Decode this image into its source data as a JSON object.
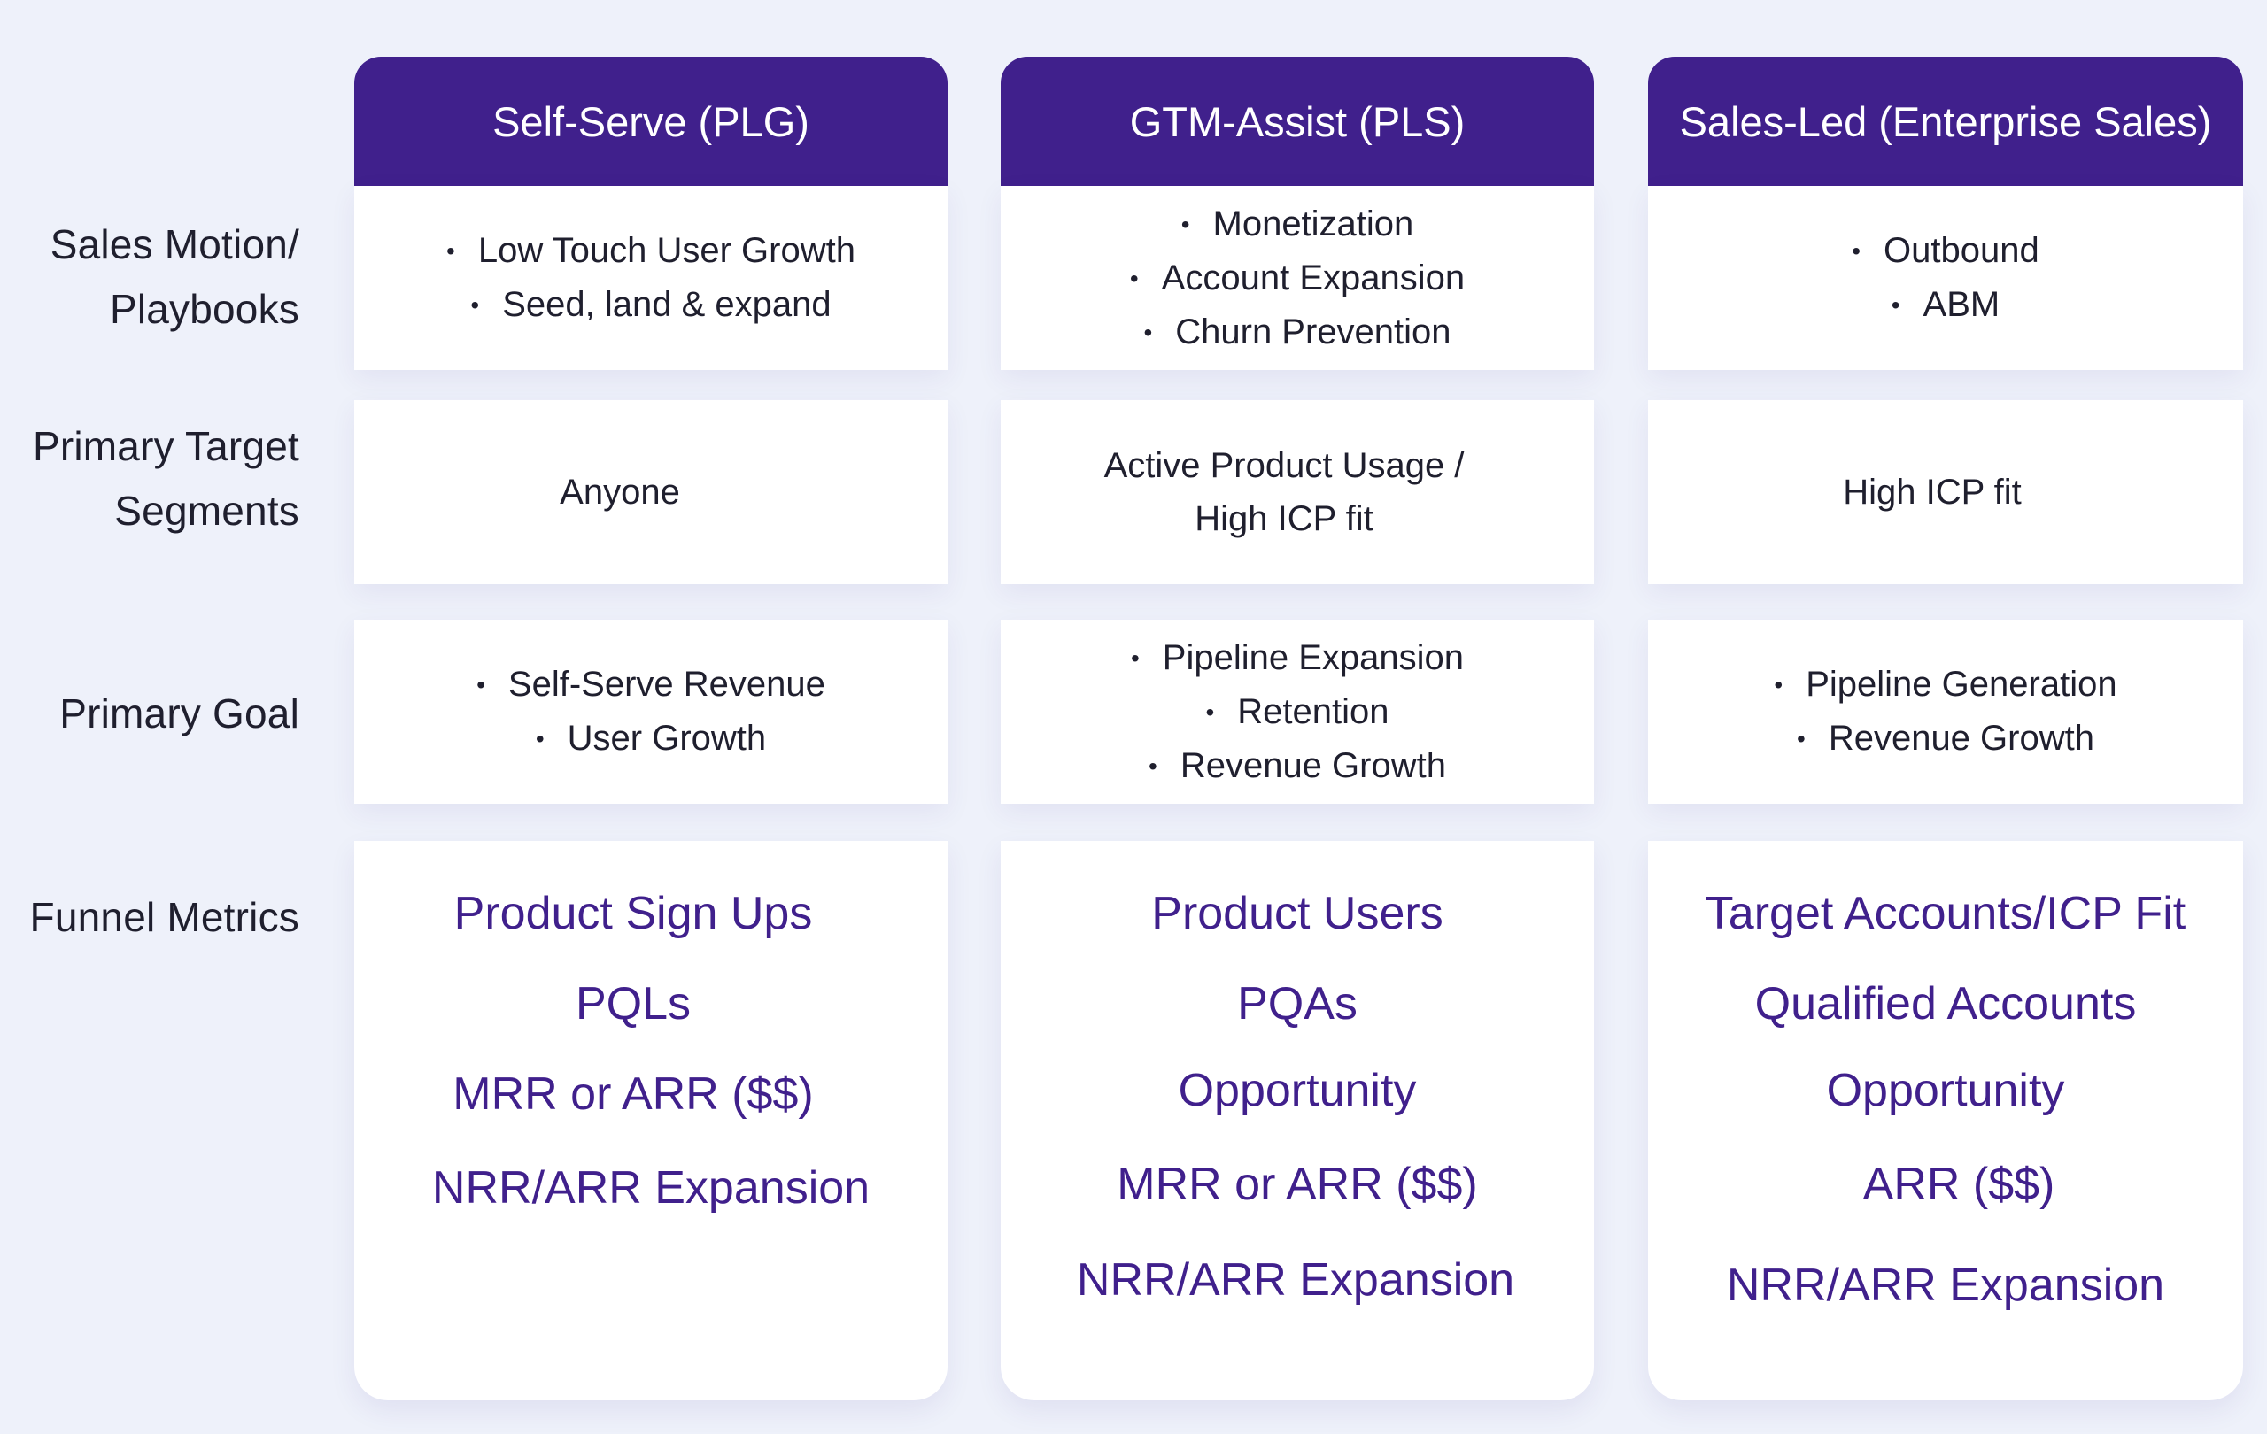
{
  "row_labels": {
    "sales_motion": [
      "Sales Motion/",
      "Playbooks"
    ],
    "target_segments": [
      "Primary Target",
      "Segments"
    ],
    "primary_goal": [
      "Primary Goal"
    ],
    "funnel_metrics": [
      "Funnel Metrics"
    ]
  },
  "columns": [
    {
      "header": "Self-Serve (PLG)",
      "sales_motion": [
        "Low Touch User Growth",
        "Seed, land & expand"
      ],
      "target_segments": [
        "Anyone"
      ],
      "primary_goal": [
        "Self-Serve Revenue",
        "User Growth"
      ],
      "funnel_metrics": [
        "Product Sign Ups",
        "PQLs",
        "MRR or ARR ($$)",
        "NRR/ARR Expansion"
      ]
    },
    {
      "header": "GTM-Assist (PLS)",
      "sales_motion": [
        "Monetization",
        "Account Expansion",
        "Churn Prevention"
      ],
      "target_segments": [
        "Active Product Usage /",
        "High ICP fit"
      ],
      "primary_goal": [
        "Pipeline Expansion",
        "Retention",
        "Revenue Growth"
      ],
      "funnel_metrics": [
        "Product Users",
        "PQAs",
        "Opportunity",
        "MRR or ARR ($$)",
        "NRR/ARR Expansion"
      ]
    },
    {
      "header": "Sales-Led (Enterprise Sales)",
      "sales_motion": [
        "Outbound",
        "ABM"
      ],
      "target_segments": [
        "High ICP fit"
      ],
      "primary_goal": [
        "Pipeline Generation",
        "Revenue Growth"
      ],
      "funnel_metrics": [
        "Target Accounts/ICP Fit",
        "Qualified Accounts",
        "Opportunity",
        "ARR ($$)",
        "NRR/ARR Expansion"
      ]
    }
  ],
  "colors": {
    "header_bg": "#40208c",
    "metric_text": "#40208c",
    "page_bg": "#eef1fa"
  }
}
